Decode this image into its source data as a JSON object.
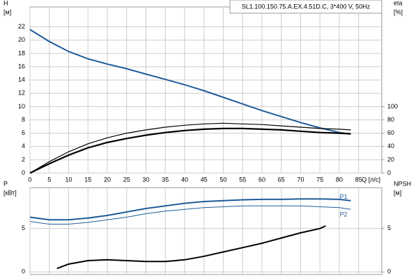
{
  "chart_data": [
    {
      "type": "line",
      "title": "SL1.100.150.75.A.EX.4.51D.C, 3*400 V, 50Hz",
      "y_label": "H",
      "y_unit": "[м]",
      "y2_label": "eta",
      "y2_unit": "[%]",
      "x_label": "Q [л/с]",
      "xlim": [
        0,
        91
      ],
      "xticks": [
        0,
        5,
        10,
        15,
        20,
        25,
        30,
        35,
        40,
        45,
        50,
        55,
        60,
        65,
        70,
        75,
        80,
        85
      ],
      "ylim": [
        0,
        25
      ],
      "yticks": [
        0,
        2,
        4,
        6,
        8,
        10,
        12,
        14,
        16,
        18,
        20,
        22
      ],
      "y2lim": [
        0,
        250
      ],
      "y2ticks": [
        0,
        20,
        40,
        60,
        80,
        100
      ],
      "grid": true,
      "series": [
        {
          "color": "#1f5c99",
          "x": [
            0,
            5,
            10,
            15,
            20,
            25,
            30,
            35,
            40,
            45,
            50,
            55,
            60,
            65,
            70,
            75,
            80,
            83
          ],
          "values": [
            21.6,
            19.8,
            18.3,
            17.2,
            16.4,
            15.7,
            14.9,
            14.1,
            13.3,
            12.4,
            11.4,
            10.4,
            9.4,
            8.5,
            7.6,
            6.8,
            6.1,
            5.9
          ]
        },
        {
          "color": "#000000",
          "axis": "y2",
          "x": [
            0,
            5,
            10,
            15,
            20,
            25,
            30,
            35,
            40,
            45,
            50,
            55,
            60,
            65,
            70,
            75,
            80,
            83
          ],
          "values": [
            0,
            17,
            32,
            44,
            53,
            60,
            65,
            69,
            72,
            74,
            75,
            74,
            73,
            71,
            69,
            67,
            66,
            65
          ]
        },
        {
          "color": "#000000",
          "axis": "y2",
          "x": [
            0,
            5,
            10,
            15,
            20,
            25,
            30,
            35,
            40,
            45,
            50,
            55,
            60,
            65,
            70,
            75,
            80,
            83
          ],
          "values": [
            0,
            14,
            27,
            38,
            46,
            52,
            57,
            61,
            64,
            66,
            67,
            67,
            66,
            65,
            63,
            61,
            60,
            59
          ]
        }
      ]
    },
    {
      "type": "line",
      "y_label": "P",
      "y_unit": "[кВт]",
      "y2_label": "NPSH",
      "y2_unit": "[м]",
      "xlim": [
        0,
        91
      ],
      "xticks": [
        0,
        5,
        10,
        15,
        20,
        25,
        30,
        35,
        40,
        45,
        50,
        55,
        60,
        65,
        70,
        75,
        80,
        85
      ],
      "ylim": [
        -0.3,
        9.7
      ],
      "yticks": [
        0,
        5
      ],
      "y2lim": [
        -0.3,
        9.7
      ],
      "y2ticks": [
        0,
        5
      ],
      "grid": true,
      "series": [
        {
          "name": "P1",
          "color": "#1f5c99",
          "x": [
            0,
            5,
            10,
            15,
            20,
            25,
            30,
            35,
            40,
            45,
            50,
            55,
            60,
            65,
            70,
            75,
            80,
            83
          ],
          "values": [
            6.3,
            6.0,
            6.0,
            6.2,
            6.5,
            6.9,
            7.3,
            7.6,
            7.9,
            8.1,
            8.2,
            8.3,
            8.35,
            8.35,
            8.4,
            8.4,
            8.35,
            8.2
          ]
        },
        {
          "name": "P2",
          "color": "#1f5c99",
          "x": [
            0,
            5,
            10,
            15,
            20,
            25,
            30,
            35,
            40,
            45,
            50,
            55,
            60,
            65,
            70,
            75,
            80,
            83
          ],
          "values": [
            5.8,
            5.5,
            5.5,
            5.7,
            6.0,
            6.3,
            6.7,
            7.0,
            7.2,
            7.4,
            7.5,
            7.6,
            7.6,
            7.6,
            7.6,
            7.5,
            7.4,
            7.2
          ]
        },
        {
          "color": "#000000",
          "axis": "y2",
          "x": [
            7,
            10,
            15,
            20,
            25,
            30,
            35,
            40,
            45,
            50,
            55,
            60,
            65,
            70,
            75,
            76.5
          ],
          "values": [
            0.4,
            0.9,
            1.3,
            1.4,
            1.3,
            1.2,
            1.2,
            1.4,
            1.8,
            2.3,
            2.8,
            3.3,
            3.9,
            4.5,
            5.0,
            5.3
          ]
        }
      ]
    }
  ]
}
